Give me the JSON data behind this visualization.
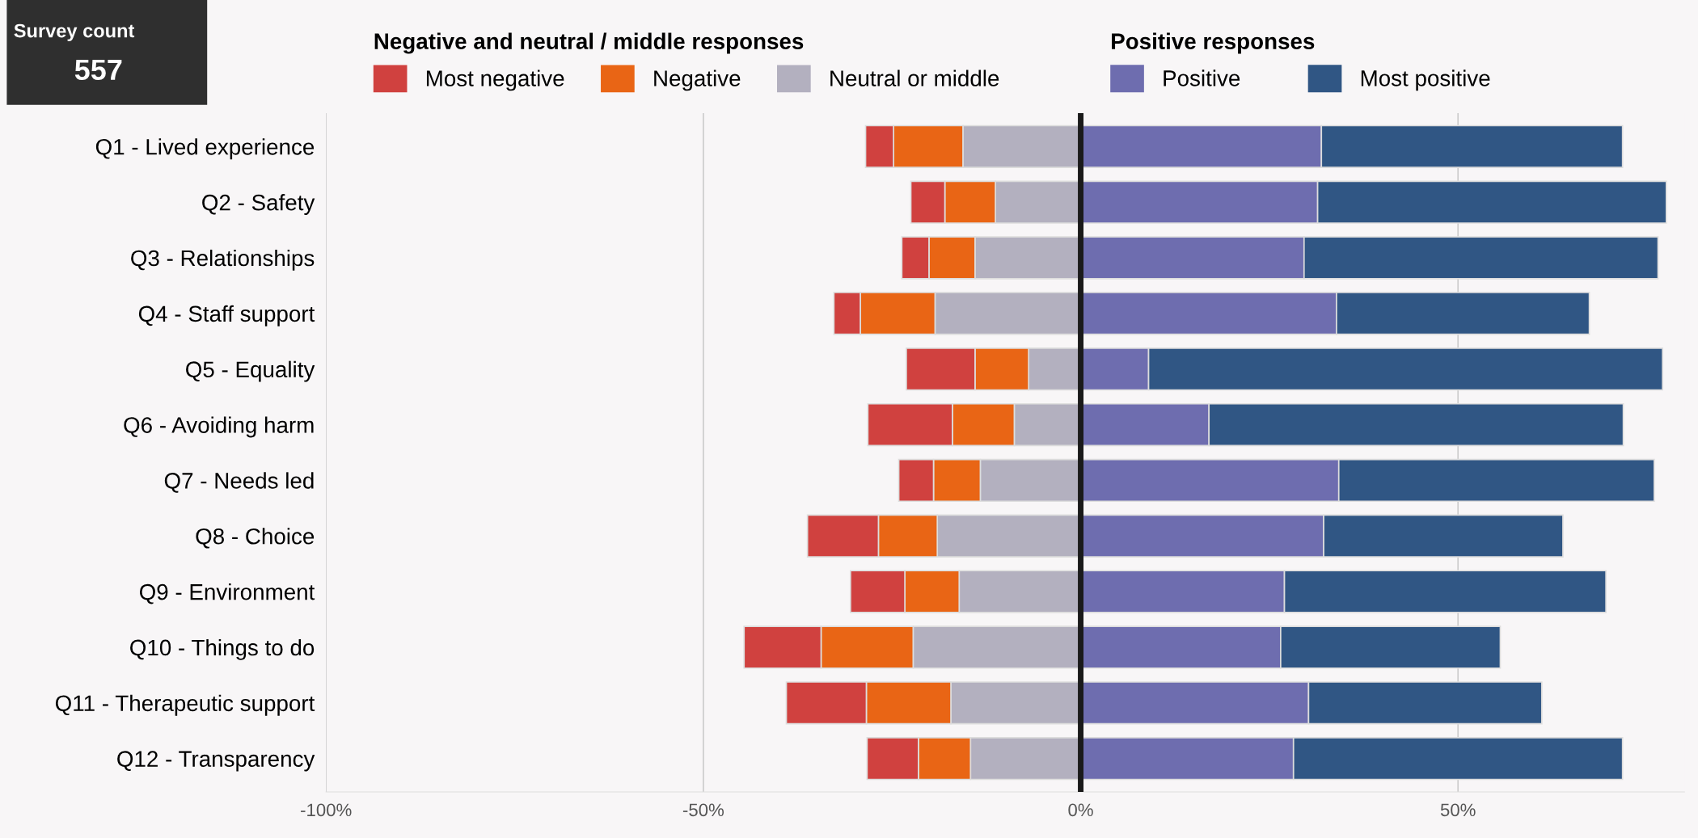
{
  "chart_data": {
    "type": "bar",
    "orientation": "horizontal",
    "stacked": true,
    "categories": [
      "Q1 - Lived experience",
      "Q2 - Safety",
      "Q3 - Relationships",
      "Q4 - Staff support",
      "Q5 - Equality",
      "Q6 - Avoiding harm",
      "Q7 - Needs led",
      "Q8 - Choice",
      "Q9 - Environment",
      "Q10 - Things to do",
      "Q11 - Therapeutic support",
      "Q12 - Transparency"
    ],
    "series": [
      {
        "name": "Neutral or middle",
        "color": "#b3b0bf",
        "values": [
          -15.6,
          -11.3,
          -14.0,
          -19.3,
          -6.9,
          -8.8,
          -13.3,
          -19.0,
          -16.1,
          -22.2,
          -17.2,
          -14.6
        ]
      },
      {
        "name": "Negative",
        "color": "#e96515",
        "values": [
          -9.2,
          -6.7,
          -6.1,
          -9.9,
          -7.1,
          -8.2,
          -6.2,
          -7.8,
          -7.2,
          -12.2,
          -11.2,
          -6.9
        ]
      },
      {
        "name": "Most negative",
        "color": "#d0413f",
        "values": [
          -3.7,
          -4.5,
          -3.6,
          -3.5,
          -9.1,
          -11.2,
          -4.6,
          -9.4,
          -7.2,
          -10.2,
          -10.6,
          -6.8
        ]
      },
      {
        "name": "Positive",
        "color": "#6e6daf",
        "values": [
          31.9,
          31.4,
          29.6,
          33.9,
          9.0,
          17.0,
          34.2,
          32.2,
          27.0,
          26.5,
          30.2,
          28.2
        ]
      },
      {
        "name": "Most positive",
        "color": "#305684",
        "values": [
          39.9,
          46.2,
          46.9,
          33.5,
          68.1,
          54.9,
          41.8,
          31.7,
          42.6,
          29.1,
          30.9,
          43.6
        ]
      }
    ],
    "xlim": [
      -100,
      80
    ],
    "xticks": [
      {
        "value": -100,
        "label": "-100%"
      },
      {
        "value": -50,
        "label": "-50%"
      },
      {
        "value": 0,
        "label": "0%"
      },
      {
        "value": 50,
        "label": "50%"
      }
    ],
    "grid": "x",
    "legend": "top",
    "ref_lines": [
      {
        "axis": "x",
        "value": 0,
        "color": "#1a1a1a"
      }
    ],
    "annotations": [
      "Survey count",
      "557",
      "Negative and neutral / middle responses",
      "Positive responses"
    ]
  }
}
